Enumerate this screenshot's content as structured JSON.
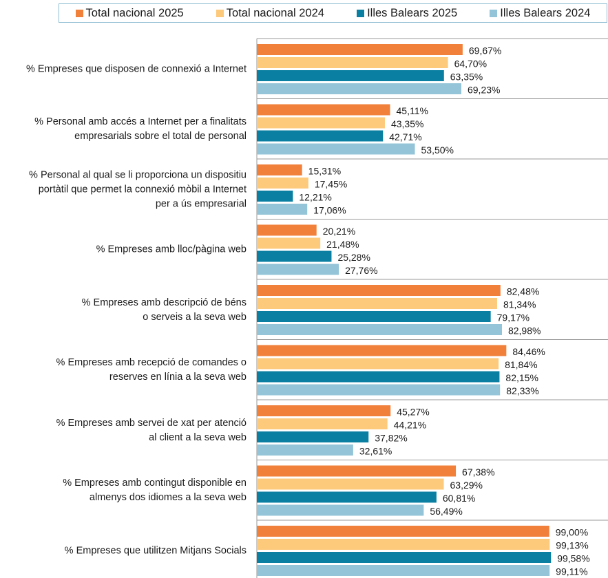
{
  "chart_data": {
    "type": "bar",
    "orientation": "horizontal",
    "categories": [
      "% Empreses que disposen de connexió a Internet",
      "% Personal amb accés a Internet per a finalitats\nempresarials sobre el total de personal",
      "% Personal al qual se li proporciona un dispositiu\nportàtil que permet la connexió mòbil a Internet\nper a ús empresarial",
      "% Empreses amb lloc/pàgina web",
      "% Empreses amb descripció de béns\no serveis a la seva web",
      "% Empreses amb recepció de comandes o\nreserves en línia a la seva web",
      "% Empreses amb servei de xat per atenció\nal client a la seva web",
      "% Empreses amb contingut disponible en\nalmenys dos idiomes a la seva web",
      "% Empreses que utilitzen Mitjans Socials"
    ],
    "series": [
      {
        "name": "Total nacional  2025",
        "color": "#f0803a",
        "values": [
          69.67,
          45.11,
          15.31,
          20.21,
          82.48,
          84.46,
          45.27,
          67.38,
          99
        ],
        "value_labels": [
          "69,67%",
          "45,11%",
          "15,31%",
          "20,21%",
          "82,48%",
          "84,46%",
          "45,27%",
          "67,38%",
          "99,00%"
        ]
      },
      {
        "name": "Total nacional  2024",
        "color": "#fdc97b",
        "values": [
          64.7,
          43.35,
          17.45,
          21.48,
          81.34,
          81.84,
          44.21,
          63.29,
          99.13
        ],
        "value_labels": [
          "64,70%",
          "43,35%",
          "17,45%",
          "21,48%",
          "81,34%",
          "81,84%",
          "44,21%",
          "63,29%",
          "99,13%"
        ]
      },
      {
        "name": "Illes Balears  2025",
        "color": "#0a7fa1",
        "values": [
          63.35,
          42.71,
          12.21,
          25.28,
          79.17,
          82.15,
          37.82,
          60.81,
          99.58
        ],
        "value_labels": [
          "63,35%",
          "42,71%",
          "12,21%",
          "25,28%",
          "79,17%",
          "82,15%",
          "37,82%",
          "60,81%",
          "99,58%"
        ]
      },
      {
        "name": "Illes Balears  2024",
        "color": "#93c4d7",
        "values": [
          69.23,
          53.5,
          17.06,
          27.76,
          82.98,
          82.33,
          32.61,
          56.49,
          99.11
        ],
        "value_labels": [
          "69,23%",
          "53,50%",
          "17,06%",
          "27,76%",
          "82,98%",
          "82,33%",
          "32,61%",
          "56,49%",
          "99,11%"
        ]
      }
    ],
    "xlim": [
      0,
      100
    ],
    "legend": "top"
  }
}
